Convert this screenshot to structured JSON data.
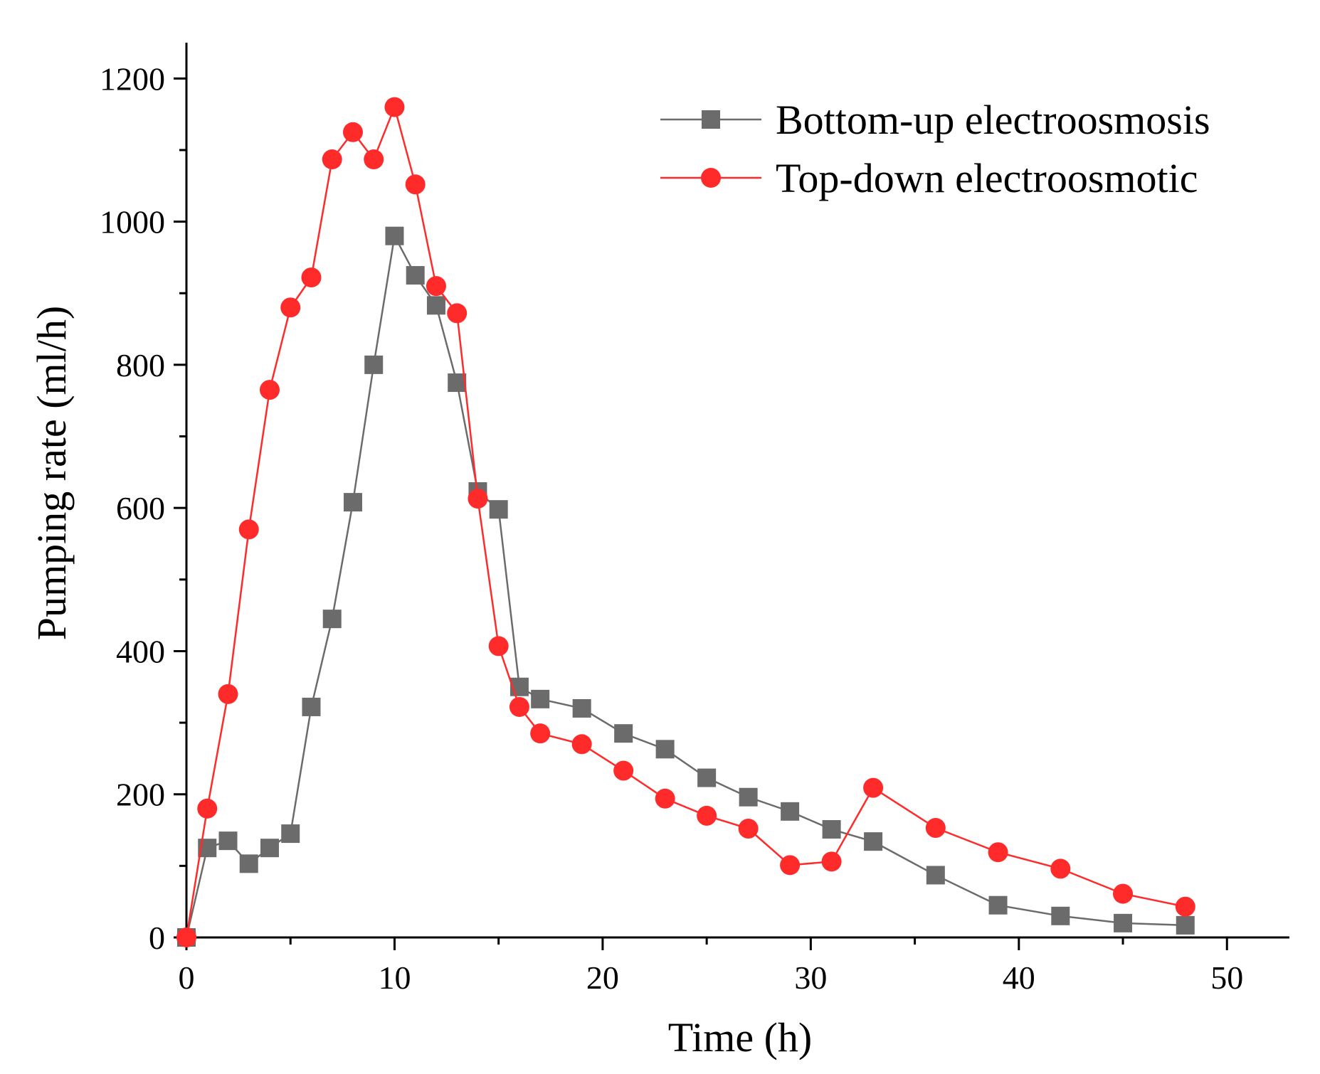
{
  "chart_data": {
    "type": "line",
    "title": "",
    "xlabel": "Time (h)",
    "ylabel": "Pumping rate (ml/h)",
    "xlim": [
      0,
      53
    ],
    "ylim": [
      0,
      1250
    ],
    "x_ticks": [
      0,
      10,
      20,
      30,
      40,
      50
    ],
    "y_ticks": [
      0,
      200,
      400,
      600,
      800,
      1000,
      1200
    ],
    "grid": false,
    "legend_position": "top-right",
    "series": [
      {
        "name": "Bottom-up electroosmosis",
        "color": "#6b6b6b",
        "marker": "square",
        "x": [
          0,
          1,
          2,
          3,
          4,
          5,
          6,
          7,
          8,
          9,
          10,
          11,
          12,
          13,
          14,
          15,
          16,
          17,
          19,
          21,
          23,
          25,
          27,
          29,
          31,
          33,
          36,
          39,
          42,
          45,
          48
        ],
        "y": [
          0,
          125,
          135,
          103,
          125,
          145,
          322,
          445,
          608,
          800,
          980,
          925,
          883,
          775,
          623,
          598,
          350,
          333,
          320,
          285,
          263,
          223,
          196,
          176,
          151,
          134,
          87,
          45,
          30,
          20,
          17
        ]
      },
      {
        "name": "Top-down electroosmotic",
        "color": "#ff2a2a",
        "marker": "circle",
        "x": [
          0,
          1,
          2,
          3,
          4,
          5,
          6,
          7,
          8,
          9,
          10,
          11,
          12,
          13,
          14,
          15,
          16,
          17,
          19,
          21,
          23,
          25,
          27,
          29,
          31,
          33,
          36,
          39,
          42,
          45,
          48
        ],
        "y": [
          0,
          180,
          340,
          570,
          765,
          880,
          922,
          1087,
          1125,
          1087,
          1160,
          1052,
          910,
          872,
          613,
          407,
          322,
          285,
          270,
          233,
          194,
          170,
          152,
          101,
          106,
          209,
          153,
          119,
          96,
          61,
          43
        ]
      }
    ]
  }
}
